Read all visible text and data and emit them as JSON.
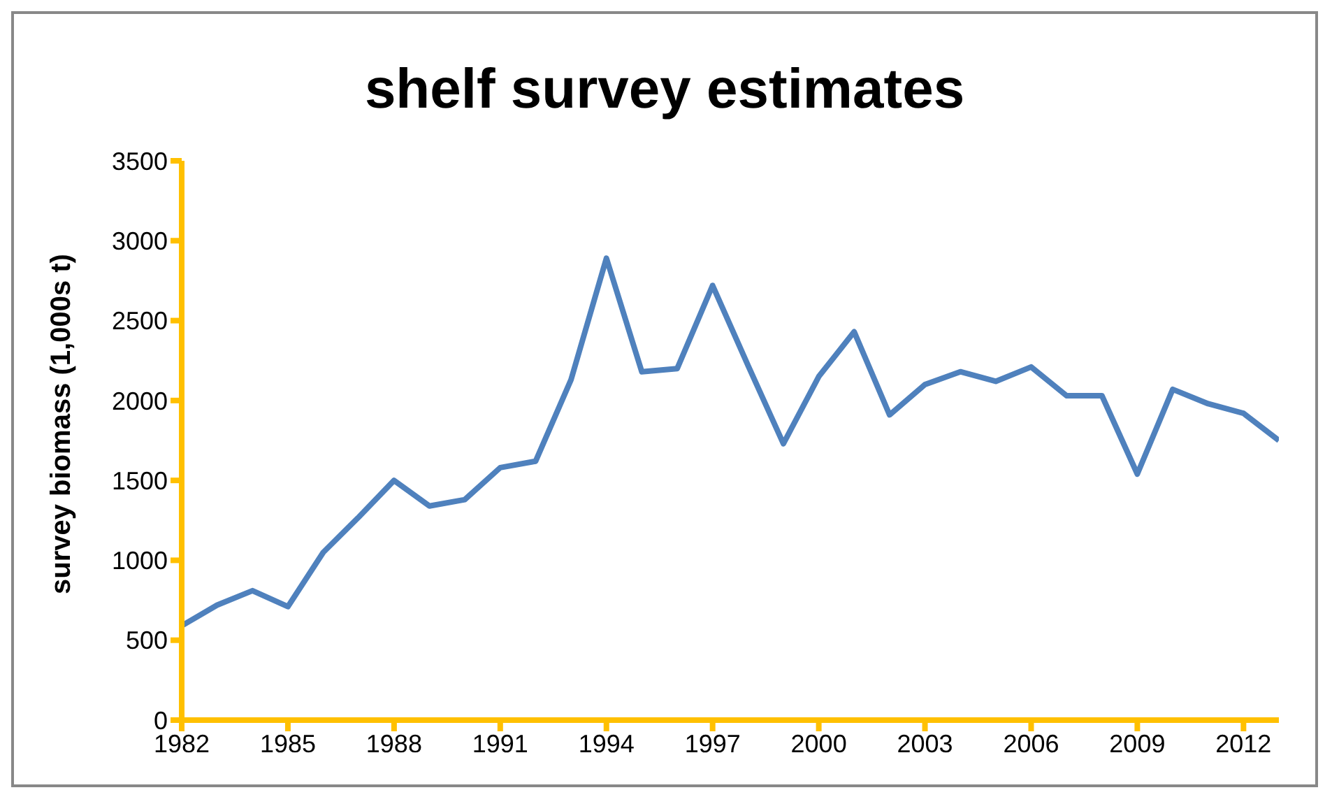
{
  "chart_data": {
    "type": "line",
    "title": "shelf survey estimates",
    "ylabel": "survey biomass (1,000s t)",
    "x": [
      1982,
      1983,
      1984,
      1985,
      1986,
      1987,
      1988,
      1989,
      1990,
      1991,
      1992,
      1993,
      1994,
      1995,
      1996,
      1997,
      1998,
      1999,
      2000,
      2001,
      2002,
      2003,
      2004,
      2005,
      2006,
      2007,
      2008,
      2009,
      2010,
      2011,
      2012,
      2013
    ],
    "series": [
      {
        "color": "#4f81bd",
        "values": [
          590,
          720,
          810,
          710,
          1050,
          1270,
          1500,
          1340,
          1380,
          1580,
          1620,
          2130,
          2890,
          2180,
          2200,
          2720,
          2220,
          1730,
          2150,
          2430,
          1910,
          2100,
          2180,
          2120,
          2210,
          2030,
          2030,
          1540,
          2070,
          1980,
          1920,
          1750
        ]
      }
    ],
    "xlim": [
      1982,
      2013
    ],
    "xticks": [
      1982,
      1985,
      1988,
      1991,
      1994,
      1997,
      2000,
      2003,
      2006,
      2009,
      2012
    ],
    "ylim": [
      0,
      3500
    ],
    "yticks": [
      0,
      500,
      1000,
      1500,
      2000,
      2500,
      3000,
      3500
    ],
    "grid": false,
    "legend": false,
    "marker": "none",
    "line_style": "solid"
  }
}
